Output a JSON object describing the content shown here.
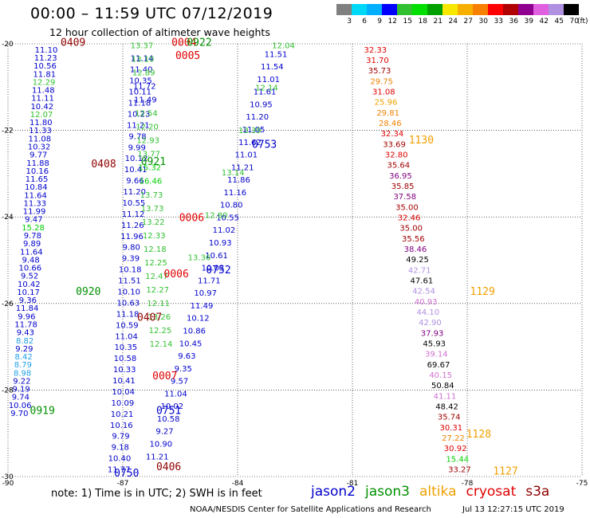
{
  "header": {
    "title": "00:00 – 11:59 UTC 07/12/2019",
    "subtitle": "12 hour collection of altimeter wave heights"
  },
  "legend": {
    "colors": [
      "#808080",
      "#00d8f8",
      "#00b0ff",
      "#0000ff",
      "#30c030",
      "#00e000",
      "#00a000",
      "#f8e800",
      "#f8b000",
      "#f88000",
      "#ff0000",
      "#b00000",
      "#900090",
      "#e060e0",
      "#b090e0",
      "#000000"
    ],
    "labels": [
      "3",
      "6",
      "9",
      "12",
      "15",
      "18",
      "21",
      "24",
      "27",
      "30",
      "33",
      "36",
      "39",
      "42",
      "45",
      "70"
    ],
    "unit": "(ft)"
  },
  "footer": {
    "note": "note: 1) Time is in UTC; 2) SWH is in feet",
    "satellites": [
      {
        "name": "jason2",
        "color": "#0000cc"
      },
      {
        "name": "jason3",
        "color": "#009000"
      },
      {
        "name": "altika",
        "color": "#f0a000"
      },
      {
        "name": "cryosat",
        "color": "#e00000"
      },
      {
        "name": "s3a",
        "color": "#900000"
      }
    ],
    "credit": "NOAA/NESDIS Center for Satellite Applications and Research",
    "timestamp": "Jul 13 12:27:15 UTC 2019"
  },
  "map": {
    "lon_range": [
      -90,
      -75
    ],
    "lat_range": [
      -30,
      -20
    ],
    "lon_ticks": [
      "-90",
      "-87",
      "-84",
      "-81",
      "-78",
      "-75"
    ],
    "lat_ticks": [
      "-20",
      "-22",
      "-24",
      "-26",
      "-28",
      "-30"
    ],
    "tracks": [
      {
        "id": "j2-west",
        "values": [
          "11.10",
          "11.23",
          "10.56",
          "11.81",
          "12.29",
          "11.48",
          "11.11",
          "10.42",
          "12.07",
          "11.80",
          "11.33",
          "11.08",
          "10.32",
          "9.77",
          "11.88",
          "10.16",
          "11.65",
          "10.84",
          "11.64",
          "11.33",
          "11.99",
          "9.47",
          "15.28",
          "9.78",
          "9.89",
          "11.64",
          "9.48",
          "10.66",
          "9.52",
          "10.42",
          "10.17",
          "9.36",
          "11.84",
          "9.96",
          "11.78",
          "9.43",
          "8.82",
          "9.29",
          "8.42",
          "8.79",
          "8.98",
          "9.22",
          "9.19",
          "9.74",
          "10.06",
          "9.70"
        ],
        "start": [
          -89.0,
          -20.2
        ],
        "end": [
          -89.7,
          -28.6
        ]
      },
      {
        "id": "j2-mid",
        "values": [
          "11.14",
          "11.40",
          "10.35",
          "10.11",
          "11.18",
          "10.23",
          "11.21",
          "9.78",
          "9.99",
          "10.12",
          "10.41",
          "9.66",
          "11.20",
          "10.55",
          "11.12",
          "11.26",
          "11.96",
          "9.80",
          "9.39",
          "10.18",
          "11.51",
          "10.10",
          "10.63",
          "11.18",
          "10.59",
          "11.04",
          "10.35",
          "10.58",
          "10.33",
          "10.41",
          "10.04",
          "10.09",
          "10.21",
          "10.16",
          "9.79",
          "9.18",
          "10.40",
          "11.77"
        ],
        "start": [
          -86.5,
          -20.4
        ],
        "end": [
          -87.1,
          -29.9
        ]
      },
      {
        "id": "j2-east",
        "values": [
          "11.51",
          "11.54",
          "11.01",
          "11.61",
          "10.95",
          "11.20",
          "11.05",
          "11.62",
          "11.01",
          "11.21",
          "11.86",
          "11.16",
          "10.80",
          "10.55",
          "11.02",
          "10.93",
          "10.61",
          "10.03",
          "11.71",
          "10.97",
          "11.49",
          "10.12",
          "10.86",
          "10.45",
          "9.63",
          "9.35",
          "9.57",
          "11.04",
          "10.02",
          "10.58",
          "9.27",
          "10.90",
          "11.21"
        ],
        "start": [
          -83.0,
          -20.3
        ],
        "end": [
          -86.1,
          -29.6
        ]
      },
      {
        "id": "j3-mid",
        "values": [
          "13.37",
          "13.10",
          "12.89",
          "11.72",
          "11.49",
          "12.54",
          "12.20",
          "12.93",
          "13.77",
          "15.32",
          "16.46",
          "13.73",
          "13.73",
          "13.22",
          "12.33",
          "12.18",
          "12.25",
          "12.47",
          "12.27",
          "12.11",
          "13.26",
          "12.25",
          "12.14"
        ],
        "start": [
          -86.5,
          -20.1
        ],
        "end": [
          -86.0,
          -27.0
        ]
      },
      {
        "id": "j3-east",
        "values": [
          "12.04",
          "12.14",
          "13.39",
          "13.14",
          "12.80",
          "13.36"
        ],
        "start": [
          -82.8,
          -20.1
        ],
        "end": [
          -85.0,
          -25.0
        ]
      },
      {
        "id": "cryo",
        "values": [
          "32.33",
          "31.70",
          "35.73",
          "29.75",
          "31.08",
          "25.96",
          "29.81",
          "28.46",
          "32.34",
          "33.69",
          "32.80",
          "35.64",
          "36.95",
          "35.85",
          "37.58",
          "35.00",
          "32.46",
          "35.00",
          "35.56",
          "38.46",
          "49.25",
          "42.71",
          "47.61",
          "42.54",
          "40.93",
          "44.10",
          "42.90",
          "37.93",
          "45.93",
          "39.14",
          "69.67",
          "40.15",
          "50.84",
          "41.11",
          "48.42",
          "35.74",
          "30.31",
          "27.22",
          "30.92",
          "15.44",
          "33.27"
        ],
        "start": [
          -80.4,
          -20.2
        ],
        "end": [
          -78.2,
          -29.9
        ]
      }
    ],
    "pass_labels": [
      {
        "time": "0409",
        "lon": -88.3,
        "lat": -20.05,
        "color": "#900000"
      },
      {
        "time": "0005",
        "lon": -85.3,
        "lat": -20.35,
        "color": "#e00000"
      },
      {
        "time": "0004",
        "lon": -85.4,
        "lat": -20.05,
        "color": "#e00000"
      },
      {
        "time": "0922",
        "lon": -85.0,
        "lat": -20.05,
        "color": "#009000"
      },
      {
        "time": "0753",
        "lon": -83.3,
        "lat": -22.4,
        "color": "#0000cc"
      },
      {
        "time": "1130",
        "lon": -79.2,
        "lat": -22.3,
        "color": "#f0a000"
      },
      {
        "time": "0408",
        "lon": -87.5,
        "lat": -22.85,
        "color": "#900000"
      },
      {
        "time": "0921",
        "lon": -86.2,
        "lat": -22.8,
        "color": "#009000"
      },
      {
        "time": "0006",
        "lon": -85.2,
        "lat": -24.1,
        "color": "#e00000"
      },
      {
        "time": "0006",
        "lon": -85.6,
        "lat": -25.4,
        "color": "#e00000"
      },
      {
        "time": "0752",
        "lon": -84.5,
        "lat": -25.3,
        "color": "#0000cc"
      },
      {
        "time": "0920",
        "lon": -87.9,
        "lat": -25.8,
        "color": "#009000"
      },
      {
        "time": "1129",
        "lon": -77.6,
        "lat": -25.8,
        "color": "#f0a000"
      },
      {
        "time": "0407",
        "lon": -86.3,
        "lat": -26.4,
        "color": "#900000"
      },
      {
        "time": "0007",
        "lon": -85.9,
        "lat": -27.75,
        "color": "#e00000"
      },
      {
        "time": "0919",
        "lon": -89.1,
        "lat": -28.55,
        "color": "#009000"
      },
      {
        "time": "0751",
        "lon": -85.8,
        "lat": -28.55,
        "color": "#0000cc"
      },
      {
        "time": "1128",
        "lon": -77.7,
        "lat": -29.1,
        "color": "#f0a000"
      },
      {
        "time": "0406",
        "lon": -85.8,
        "lat": -29.85,
        "color": "#900000"
      },
      {
        "time": "0750",
        "lon": -86.9,
        "lat": -30.0,
        "color": "#0000cc"
      },
      {
        "time": "1127",
        "lon": -77.0,
        "lat": -29.95,
        "color": "#f0a000"
      }
    ]
  }
}
